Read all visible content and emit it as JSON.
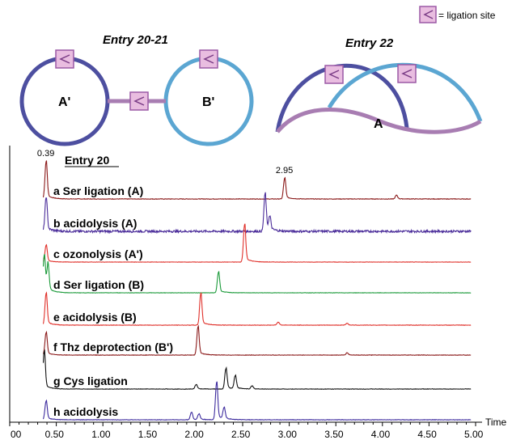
{
  "legend": {
    "text": "= ligation site",
    "icon": "ligation-site-icon"
  },
  "colors": {
    "darkblue": "#4d4fa0",
    "lightblue": "#5ba6d2",
    "purple": "#a87db2",
    "ligation_fill": "#e9bde0",
    "ligation_stroke": "#9b59a5"
  },
  "schematic_left": {
    "title": "Entry 20-21",
    "label_left": "A'",
    "label_right": "B'"
  },
  "schematic_right": {
    "title": "Entry 22",
    "label": "A"
  },
  "chart_data": {
    "type": "line",
    "header": "Entry 20",
    "xlabel": "Time",
    "xlim": [
      0,
      5
    ],
    "xticks": [
      "00",
      "0.50",
      "1.00",
      "1.50",
      "2.00",
      "2.50",
      "3.00",
      "3.50",
      "4.00",
      "4.50",
      "5.00"
    ],
    "annotations": [
      {
        "text": "0.39",
        "x": 0.39,
        "trace": 0
      },
      {
        "text": "2.95",
        "x": 2.95,
        "trace": 0
      }
    ],
    "series": [
      {
        "letter": "a",
        "label": "Ser ligation (A)",
        "color": "#8b1a1a",
        "peaks": [
          {
            "x": 0.39,
            "h": 1.0
          },
          {
            "x": 2.95,
            "h": 0.55
          },
          {
            "x": 4.15,
            "h": 0.1
          }
        ],
        "noise": 0.015
      },
      {
        "letter": "b",
        "label": "acidolysis (A)",
        "color": "#4b2d9a",
        "peaks": [
          {
            "x": 0.39,
            "h": 0.9
          },
          {
            "x": 2.74,
            "h": 1.0
          },
          {
            "x": 2.79,
            "h": 0.35
          }
        ],
        "noise": 0.06
      },
      {
        "letter": "c",
        "label": "ozonolysis (A')",
        "color": "#e0302a",
        "peaks": [
          {
            "x": 0.39,
            "h": 0.45
          },
          {
            "x": 2.52,
            "h": 1.0
          }
        ],
        "noise": 0.01
      },
      {
        "letter": "d",
        "label": "Ser ligation (B)",
        "color": "#1b9a3a",
        "peaks": [
          {
            "x": 0.37,
            "h": 1.0
          },
          {
            "x": 0.41,
            "h": 0.7
          },
          {
            "x": 2.24,
            "h": 0.55
          }
        ],
        "noise": 0.01
      },
      {
        "letter": "e",
        "label": "acidolysis (B)",
        "color": "#e0302a",
        "peaks": [
          {
            "x": 0.39,
            "h": 0.85
          },
          {
            "x": 2.05,
            "h": 0.85
          },
          {
            "x": 2.88,
            "h": 0.08
          },
          {
            "x": 3.62,
            "h": 0.05
          }
        ],
        "noise": 0.012
      },
      {
        "letter": "f",
        "label": "Thz deprotection (B')",
        "color": "#8b1a1a",
        "peaks": [
          {
            "x": 0.39,
            "h": 0.6
          },
          {
            "x": 2.02,
            "h": 0.75
          },
          {
            "x": 3.62,
            "h": 0.06
          }
        ],
        "noise": 0.012
      },
      {
        "letter": "g",
        "label": "Cys ligation",
        "color": "#111111",
        "peaks": [
          {
            "x": 0.37,
            "h": 1.0
          },
          {
            "x": 2.0,
            "h": 0.12
          },
          {
            "x": 2.32,
            "h": 0.55
          },
          {
            "x": 2.42,
            "h": 0.35
          },
          {
            "x": 2.6,
            "h": 0.08
          }
        ],
        "noise": 0.012
      },
      {
        "letter": "h",
        "label": "acidolysis",
        "color": "#3d2b9e",
        "peaks": [
          {
            "x": 0.39,
            "h": 0.5
          },
          {
            "x": 1.95,
            "h": 0.2
          },
          {
            "x": 2.03,
            "h": 0.15
          },
          {
            "x": 2.22,
            "h": 1.0
          },
          {
            "x": 2.3,
            "h": 0.3
          }
        ],
        "noise": 0.012
      }
    ]
  }
}
